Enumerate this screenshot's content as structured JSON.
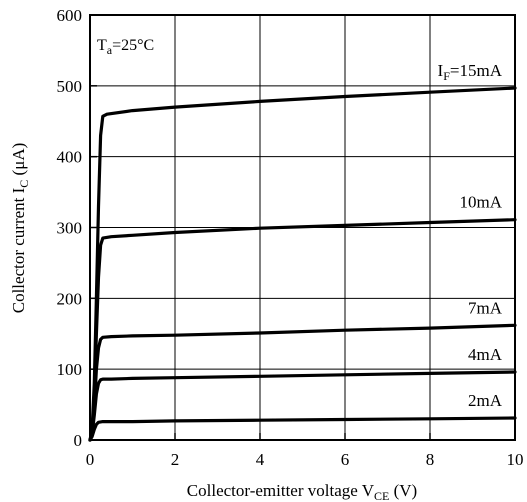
{
  "chart_data": {
    "type": "line",
    "xlabel": {
      "main": "Collector-emitter voltage V",
      "sub": "CE",
      "tail": " (V)"
    },
    "ylabel": {
      "main": "Collector current I",
      "sub": "C",
      "tail": " (μA)"
    },
    "xlim": [
      0,
      10
    ],
    "ylim": [
      0,
      600
    ],
    "xticks": [
      "0",
      "2",
      "4",
      "6",
      "8",
      "10"
    ],
    "yticks": [
      "0",
      "100",
      "200",
      "300",
      "400",
      "500",
      "600"
    ],
    "grid": true,
    "annotation": {
      "main": "T",
      "sub": "a",
      "tail": "=25°C"
    },
    "series": [
      {
        "name": "IF=15mA",
        "label": {
          "main": "I",
          "sub": "F",
          "tail": "=15mA"
        },
        "points": [
          [
            0,
            0
          ],
          [
            0.05,
            15
          ],
          [
            0.1,
            80
          ],
          [
            0.15,
            200
          ],
          [
            0.2,
            330
          ],
          [
            0.25,
            430
          ],
          [
            0.3,
            457
          ],
          [
            0.4,
            460
          ],
          [
            1,
            465
          ],
          [
            2,
            470
          ],
          [
            4,
            478
          ],
          [
            6,
            485
          ],
          [
            8,
            491
          ],
          [
            10,
            497
          ]
        ]
      },
      {
        "name": "10mA",
        "label": {
          "main": "10mA",
          "sub": "",
          "tail": ""
        },
        "points": [
          [
            0,
            0
          ],
          [
            0.05,
            10
          ],
          [
            0.1,
            60
          ],
          [
            0.15,
            150
          ],
          [
            0.2,
            230
          ],
          [
            0.25,
            275
          ],
          [
            0.3,
            285
          ],
          [
            0.5,
            287
          ],
          [
            1,
            289
          ],
          [
            2,
            293
          ],
          [
            4,
            299
          ],
          [
            6,
            303
          ],
          [
            8,
            307
          ],
          [
            10,
            311
          ]
        ]
      },
      {
        "name": "7mA",
        "label": {
          "main": "7mA",
          "sub": "",
          "tail": ""
        },
        "points": [
          [
            0,
            0
          ],
          [
            0.05,
            10
          ],
          [
            0.1,
            45
          ],
          [
            0.15,
            100
          ],
          [
            0.2,
            130
          ],
          [
            0.25,
            142
          ],
          [
            0.3,
            145
          ],
          [
            0.5,
            146
          ],
          [
            1,
            147
          ],
          [
            2,
            148
          ],
          [
            4,
            151
          ],
          [
            6,
            155
          ],
          [
            8,
            158
          ],
          [
            10,
            162
          ]
        ]
      },
      {
        "name": "4mA",
        "label": {
          "main": "4mA",
          "sub": "",
          "tail": ""
        },
        "points": [
          [
            0,
            0
          ],
          [
            0.05,
            8
          ],
          [
            0.1,
            35
          ],
          [
            0.15,
            65
          ],
          [
            0.2,
            80
          ],
          [
            0.25,
            85
          ],
          [
            0.3,
            86
          ],
          [
            0.5,
            86
          ],
          [
            1,
            87
          ],
          [
            2,
            88
          ],
          [
            4,
            90
          ],
          [
            6,
            92
          ],
          [
            8,
            94
          ],
          [
            10,
            96
          ]
        ]
      },
      {
        "name": "2mA",
        "label": {
          "main": "2mA",
          "sub": "",
          "tail": ""
        },
        "points": [
          [
            0,
            0
          ],
          [
            0.05,
            5
          ],
          [
            0.1,
            15
          ],
          [
            0.15,
            22
          ],
          [
            0.2,
            25
          ],
          [
            0.3,
            26
          ],
          [
            0.5,
            26
          ],
          [
            1,
            26
          ],
          [
            2,
            27
          ],
          [
            4,
            28
          ],
          [
            6,
            29
          ],
          [
            8,
            30
          ],
          [
            10,
            31
          ]
        ]
      }
    ]
  }
}
